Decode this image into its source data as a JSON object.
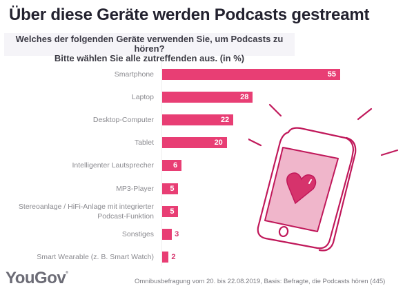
{
  "chart_data": {
    "type": "bar",
    "orientation": "horizontal",
    "title": "Über diese Geräte werden Podcasts gestreamt",
    "subtitle": [
      "Welches der folgenden Geräte verwenden Sie, um Podcasts zu hören?",
      "Bitte wählen Sie alle zutreffenden aus. (in %)"
    ],
    "categories": [
      "Smartphone",
      "Laptop",
      "Desktop-Computer",
      "Tablet",
      "Intelligenter Lautsprecher",
      "MP3-Player",
      "Stereoanlage / HiFi-Anlage mit integrierter Podcast-Funktion",
      "Sonstiges",
      "Smart Wearable (z. B. Smart Watch)"
    ],
    "category_lines": [
      [
        "Smartphone"
      ],
      [
        "Laptop"
      ],
      [
        "Desktop-Computer"
      ],
      [
        "Tablet"
      ],
      [
        "Intelligenter Lautsprecher"
      ],
      [
        "MP3-Player"
      ],
      [
        "Stereoanlage / HiFi-Anlage mit integrierter",
        "Podcast-Funktion"
      ],
      [
        "Sonstiges"
      ],
      [
        "Smart Wearable (z. B. Smart Watch)"
      ]
    ],
    "values": [
      55,
      28,
      22,
      20,
      6,
      5,
      5,
      3,
      2
    ],
    "unit": "%",
    "xlim": [
      0,
      55
    ],
    "grid": false,
    "legend": "none",
    "bar_color": "#e83e74"
  },
  "branding": {
    "logo": "YouGov",
    "logo_mark": "®"
  },
  "footnote": "Omnibusbefragung vom 20. bis 22.08.2019, Basis: Befragte, die Podcasts hören (445)",
  "illustration": {
    "icon": "smartphone-with-heart-icon",
    "colors": {
      "outline": "#c0185a",
      "screen": "#f0b6cb",
      "heart": "#d6336c"
    }
  }
}
